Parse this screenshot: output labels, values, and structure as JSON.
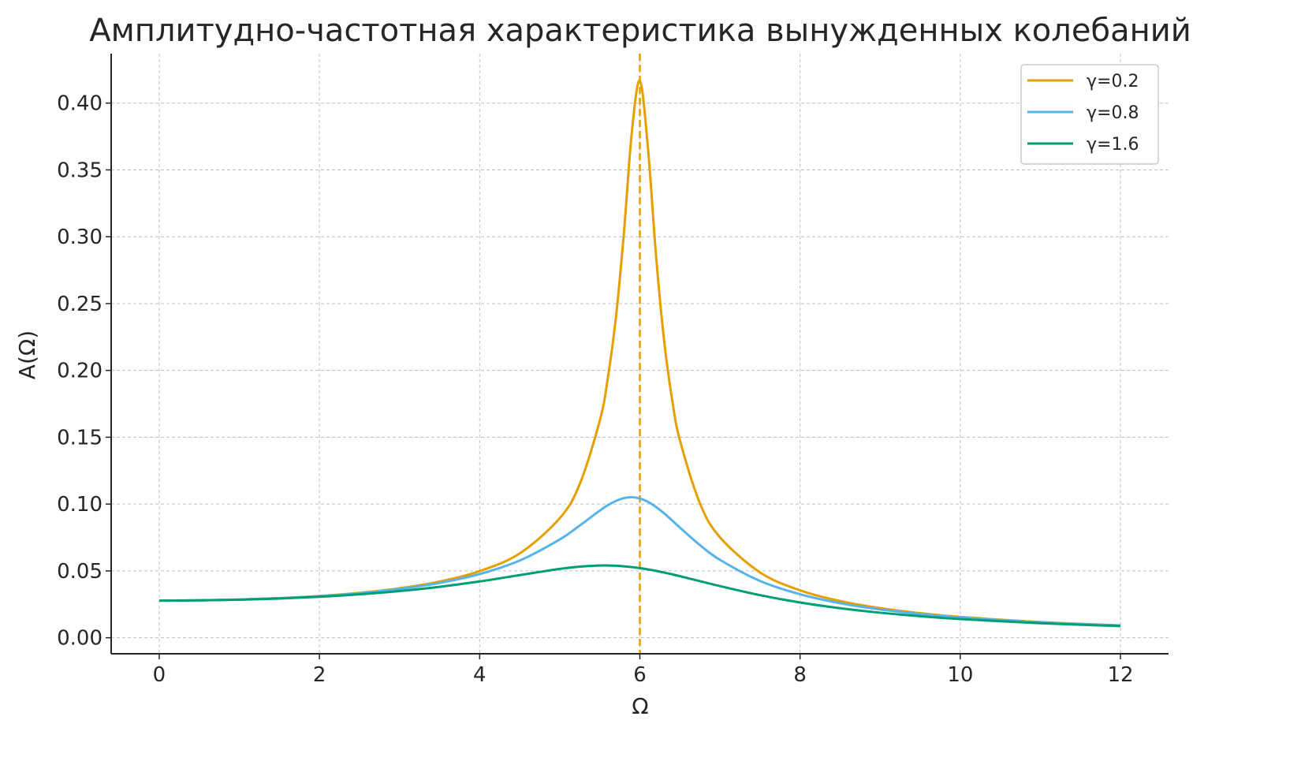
{
  "chart_data": {
    "type": "line",
    "title": "Амплитудно-частотная характеристика вынужденных колебаний",
    "xlabel": "Ω",
    "ylabel": "A(Ω)",
    "xlim": [
      -0.6,
      12.6
    ],
    "ylim": [
      -0.012,
      0.437
    ],
    "xticks": [
      0,
      2,
      4,
      6,
      8,
      10,
      12
    ],
    "xtick_labels": [
      "0",
      "2",
      "4",
      "6",
      "8",
      "10",
      "12"
    ],
    "yticks": [
      0,
      0.05,
      0.1,
      0.15,
      0.2,
      0.25,
      0.3,
      0.35,
      0.4
    ],
    "ytick_labels": [
      "0.00",
      "0.05",
      "0.10",
      "0.15",
      "0.20",
      "0.25",
      "0.30",
      "0.35",
      "0.40"
    ],
    "grid": true,
    "legend_position": "top-right",
    "vline": {
      "x": 6,
      "color": "#E69F00",
      "style": "dashed"
    },
    "x": [
      0,
      0.5,
      1,
      1.5,
      2,
      2.5,
      3,
      3.5,
      4,
      4.5,
      5,
      5.25,
      5.5,
      5.6,
      5.7,
      5.8,
      5.9,
      6,
      6.1,
      6.2,
      6.3,
      6.4,
      6.5,
      6.75,
      7,
      7.5,
      8,
      8.5,
      9,
      9.5,
      10,
      11,
      12
    ],
    "series": [
      {
        "name": "γ=0.2",
        "color": "#E69F00",
        "values": [
          0.02778,
          0.02797,
          0.02857,
          0.02963,
          0.03124,
          0.03359,
          0.037,
          0.04203,
          0.04984,
          0.06308,
          0.08944,
          0.115,
          0.1624,
          0.1941,
          0.2389,
          0.3022,
          0.3783,
          0.4167,
          0.3671,
          0.2875,
          0.2238,
          0.1792,
          0.1477,
          0.1006,
          0.0752,
          0.04885,
          0.03548,
          0.02747,
          0.02215,
          0.01839,
          0.01559,
          0.01175,
          0.00925
        ]
      },
      {
        "name": "γ=0.8",
        "color": "#56B4E9",
        "values": [
          0.02778,
          0.02797,
          0.02854,
          0.02956,
          0.03109,
          0.03331,
          0.03647,
          0.04098,
          0.04762,
          0.05774,
          0.07352,
          0.08399,
          0.09513,
          0.09911,
          0.1023,
          0.1044,
          0.1051,
          0.1042,
          0.1017,
          0.0979,
          0.0932,
          0.0879,
          0.0824,
          0.0693,
          0.05828,
          0.04248,
          0.03248,
          0.02583,
          0.02117,
          0.01775,
          0.01516,
          0.01152,
          0.00912
        ]
      },
      {
        "name": "γ=1.6",
        "color": "#009E73",
        "values": [
          0.02778,
          0.02794,
          0.02845,
          0.02933,
          0.03064,
          0.03246,
          0.0349,
          0.03808,
          0.04211,
          0.04686,
          0.0515,
          0.05319,
          0.05401,
          0.05402,
          0.05384,
          0.05345,
          0.05286,
          0.05208,
          0.05113,
          0.05003,
          0.04879,
          0.04746,
          0.04604,
          0.04233,
          0.03861,
          0.03185,
          0.02636,
          0.02207,
          0.01872,
          0.01608,
          0.01398,
          0.01087,
          0.00872
        ]
      }
    ]
  }
}
